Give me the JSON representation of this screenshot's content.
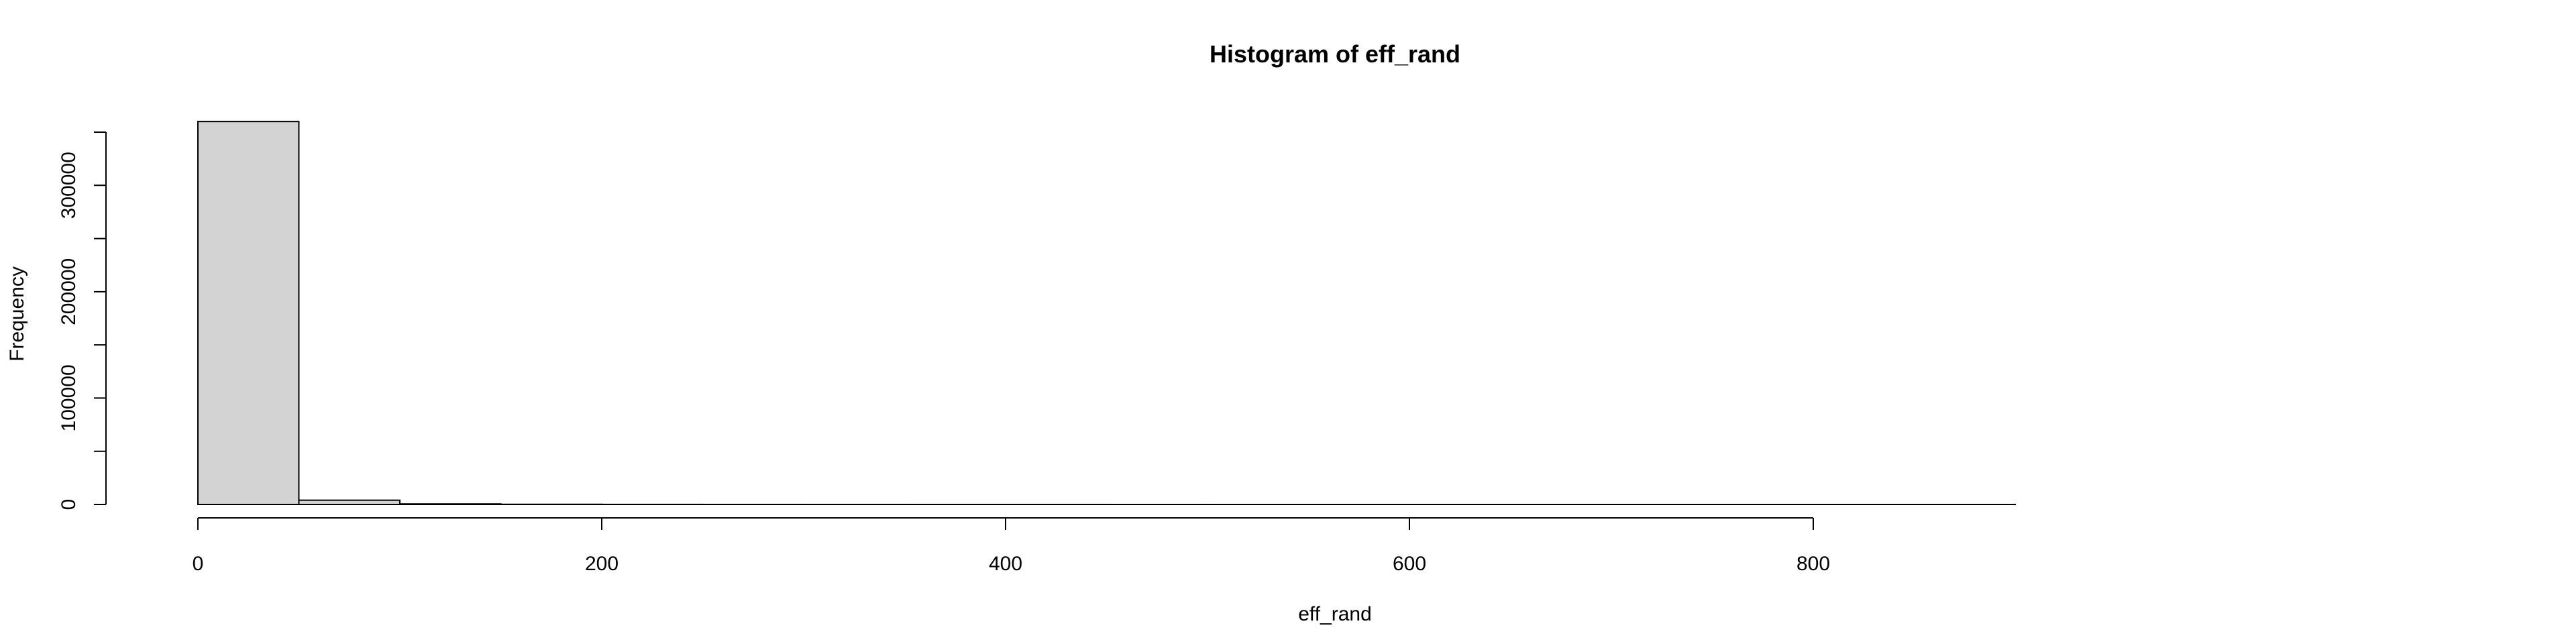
{
  "chart_data": {
    "type": "histogram",
    "title": "Histogram of eff_rand",
    "xlabel": "eff_rand",
    "ylabel": "Frequency",
    "bin_edges": [
      0,
      50,
      100,
      150,
      200,
      250,
      300,
      350,
      400,
      450,
      500,
      550,
      600,
      650,
      700,
      750,
      800,
      850,
      900
    ],
    "counts": [
      360000,
      4000,
      500,
      150,
      60,
      30,
      15,
      8,
      5,
      3,
      2,
      1,
      1,
      1,
      1,
      1,
      1,
      1
    ],
    "xlim": [
      0,
      900
    ],
    "ylim": [
      0,
      350000
    ],
    "x_ticks": [
      0,
      200,
      400,
      600,
      800
    ],
    "x_tick_labels": [
      "0",
      "200",
      "400",
      "600",
      "800"
    ],
    "y_ticks": [
      0,
      50000,
      100000,
      150000,
      200000,
      250000,
      300000,
      350000
    ],
    "y_tick_labels": [
      "0",
      "",
      "100000",
      "",
      "200000",
      "",
      "300000",
      ""
    ],
    "bar_color": "#d3d3d3",
    "border_color": "#000000",
    "grid": false,
    "legend": "none"
  }
}
